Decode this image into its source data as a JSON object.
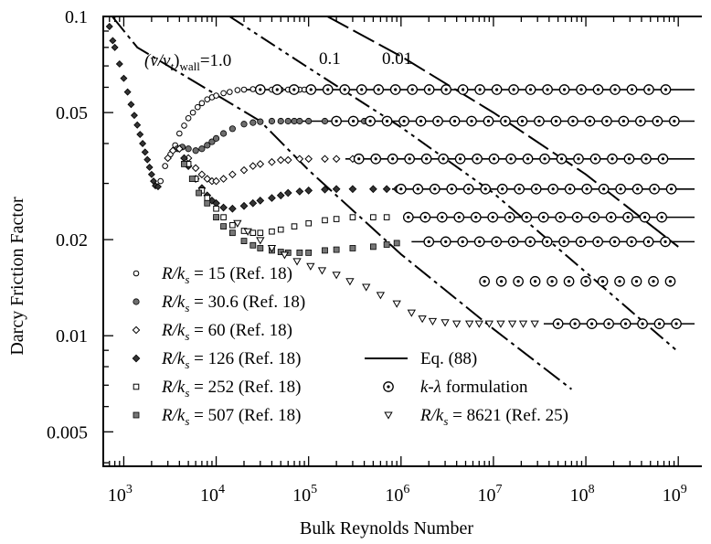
{
  "chart_data": {
    "type": "scatter",
    "title": "",
    "xlabel": "Bulk Reynolds Number",
    "ylabel": "Darcy Friction Factor",
    "x_scale": "log",
    "y_scale": "log",
    "xlim": [
      600,
      1500000000
    ],
    "ylim": [
      0.0039,
      0.1
    ],
    "x_ticks": [
      {
        "value": 1000,
        "base": "10",
        "exp": "3"
      },
      {
        "value": 10000,
        "base": "10",
        "exp": "4"
      },
      {
        "value": 100000,
        "base": "10",
        "exp": "5"
      },
      {
        "value": 1000000,
        "base": "10",
        "exp": "6"
      },
      {
        "value": 10000000,
        "base": "10",
        "exp": "7"
      },
      {
        "value": 100000000,
        "base": "10",
        "exp": "8"
      },
      {
        "value": 1000000000,
        "base": "10",
        "exp": "9"
      }
    ],
    "y_ticks": [
      {
        "value": 0.005,
        "label": "0.005"
      },
      {
        "value": 0.01,
        "label": "0.01"
      },
      {
        "value": 0.02,
        "label": "0.02"
      },
      {
        "value": 0.05,
        "label": "0.05"
      },
      {
        "value": 0.1,
        "label": "0.1"
      }
    ],
    "grid": false,
    "legend_position": "lower-left",
    "legend": [
      {
        "marker": "circle-open",
        "label": " = 15 (Ref. 18)"
      },
      {
        "marker": "circle-gray",
        "label": " = 30.6 (Ref. 18)"
      },
      {
        "marker": "diamond-open",
        "label": " = 60 (Ref. 18)"
      },
      {
        "marker": "diamond-dark",
        "label": " = 126 (Ref. 18)"
      },
      {
        "marker": "square-open",
        "label": " = 252 (Ref. 18)"
      },
      {
        "marker": "square-gray",
        "label": " = 507 (Ref. 18)"
      },
      {
        "marker": "line",
        "label": "Eq. (88)"
      },
      {
        "marker": "circle-dot",
        "label": " formulation"
      },
      {
        "marker": "triangle-down-open",
        "label": " = 8621 (Ref. 25)"
      }
    ],
    "legend_var": "R/k",
    "legend_var_sub": "s",
    "legend_k_lambda": "k-λ",
    "viscosity_label": {
      "text": "(ν/ν",
      "sub_t": "t",
      "close": ")",
      "sub_wall": "wall",
      "eq": "=1.0"
    },
    "iso_line_labels": [
      {
        "text": "0.1",
        "value": 0.1
      },
      {
        "text": "0.01",
        "value": 0.01
      }
    ],
    "laminar_series": [
      [
        700,
        0.093
      ],
      [
        760,
        0.084
      ],
      [
        800,
        0.08
      ],
      [
        900,
        0.071
      ],
      [
        1000,
        0.064
      ],
      [
        1100,
        0.058
      ],
      [
        1200,
        0.053
      ],
      [
        1300,
        0.049
      ],
      [
        1400,
        0.0457
      ],
      [
        1500,
        0.0427
      ],
      [
        1600,
        0.04
      ],
      [
        1700,
        0.0376
      ],
      [
        1800,
        0.0356
      ],
      [
        1900,
        0.0337
      ],
      [
        2000,
        0.032
      ],
      [
        2100,
        0.0305
      ],
      [
        2200,
        0.0295
      ],
      [
        2350,
        0.0293
      ]
    ],
    "series": [
      {
        "name": "R/ks = 15 (Ref. 18)",
        "marker": "circle-open",
        "values": [
          [
            2500,
            0.0305
          ],
          [
            2800,
            0.034
          ],
          [
            3200,
            0.037
          ],
          [
            3600,
            0.0395
          ],
          [
            4000,
            0.043
          ],
          [
            4500,
            0.0455
          ],
          [
            5000,
            0.048
          ],
          [
            5600,
            0.05
          ],
          [
            6300,
            0.052
          ],
          [
            7000,
            0.0535
          ],
          [
            8000,
            0.055
          ],
          [
            9000,
            0.0558
          ],
          [
            10000,
            0.0565
          ],
          [
            12000,
            0.0575
          ],
          [
            14000,
            0.058
          ],
          [
            17000,
            0.0588
          ],
          [
            20000,
            0.059
          ],
          [
            25000,
            0.0592
          ],
          [
            30000,
            0.059
          ],
          [
            40000,
            0.059
          ],
          [
            50000,
            0.059
          ],
          [
            60000,
            0.059
          ],
          [
            70000,
            0.059
          ],
          [
            80000,
            0.059
          ],
          [
            90000,
            0.059
          ]
        ]
      },
      {
        "name": "R/ks = 30.6 (Ref. 18)",
        "marker": "circle-gray",
        "values": [
          [
            3800,
            0.0385
          ],
          [
            4300,
            0.039
          ],
          [
            5000,
            0.0385
          ],
          [
            6000,
            0.038
          ],
          [
            7000,
            0.0385
          ],
          [
            8000,
            0.0395
          ],
          [
            9000,
            0.0405
          ],
          [
            10000,
            0.0415
          ],
          [
            12000,
            0.043
          ],
          [
            15000,
            0.0445
          ],
          [
            20000,
            0.046
          ],
          [
            25000,
            0.0465
          ],
          [
            30000,
            0.0468
          ],
          [
            40000,
            0.047
          ],
          [
            50000,
            0.047
          ],
          [
            60000,
            0.047
          ],
          [
            70000,
            0.047
          ],
          [
            80000,
            0.047
          ],
          [
            100000,
            0.047
          ],
          [
            150000,
            0.047
          ],
          [
            200000,
            0.047
          ],
          [
            300000,
            0.047
          ],
          [
            400000,
            0.047
          ]
        ]
      },
      {
        "name": "R/ks = 60 (Ref. 18)",
        "marker": "diamond-open",
        "values": [
          [
            3000,
            0.036
          ],
          [
            3400,
            0.038
          ],
          [
            4000,
            0.0385
          ],
          [
            5000,
            0.036
          ],
          [
            6000,
            0.0335
          ],
          [
            7000,
            0.032
          ],
          [
            8000,
            0.031
          ],
          [
            9000,
            0.0305
          ],
          [
            10000,
            0.0305
          ],
          [
            12000,
            0.031
          ],
          [
            15000,
            0.032
          ],
          [
            20000,
            0.033
          ],
          [
            25000,
            0.034
          ],
          [
            30000,
            0.0345
          ],
          [
            40000,
            0.035
          ],
          [
            50000,
            0.0355
          ],
          [
            60000,
            0.0355
          ],
          [
            80000,
            0.0358
          ],
          [
            100000,
            0.0358
          ],
          [
            150000,
            0.0358
          ],
          [
            200000,
            0.0358
          ],
          [
            300000,
            0.0358
          ]
        ]
      },
      {
        "name": "R/ks = 126 (Ref. 18)",
        "marker": "diamond-dark",
        "values": [
          [
            4500,
            0.036
          ],
          [
            5000,
            0.034
          ],
          [
            6000,
            0.031
          ],
          [
            7000,
            0.029
          ],
          [
            8000,
            0.0275
          ],
          [
            9000,
            0.0265
          ],
          [
            10000,
            0.026
          ],
          [
            12000,
            0.0252
          ],
          [
            15000,
            0.025
          ],
          [
            20000,
            0.0255
          ],
          [
            25000,
            0.026
          ],
          [
            30000,
            0.0265
          ],
          [
            40000,
            0.027
          ],
          [
            50000,
            0.0275
          ],
          [
            60000,
            0.028
          ],
          [
            80000,
            0.0283
          ],
          [
            100000,
            0.0285
          ],
          [
            150000,
            0.0287
          ],
          [
            200000,
            0.0288
          ],
          [
            300000,
            0.0288
          ],
          [
            500000,
            0.0288
          ],
          [
            700000,
            0.0288
          ],
          [
            900000,
            0.0288
          ]
        ]
      },
      {
        "name": "R/ks = 252 (Ref. 18)",
        "marker": "square-open",
        "values": [
          [
            5000,
            0.0345
          ],
          [
            6000,
            0.031
          ],
          [
            7000,
            0.0285
          ],
          [
            8000,
            0.027
          ],
          [
            10000,
            0.025
          ],
          [
            12000,
            0.0235
          ],
          [
            15000,
            0.0222
          ],
          [
            20000,
            0.0213
          ],
          [
            25000,
            0.021
          ],
          [
            30000,
            0.021
          ],
          [
            40000,
            0.0212
          ],
          [
            50000,
            0.0215
          ],
          [
            70000,
            0.022
          ],
          [
            100000,
            0.0225
          ],
          [
            150000,
            0.023
          ],
          [
            200000,
            0.0232
          ],
          [
            300000,
            0.0235
          ],
          [
            500000,
            0.0235
          ],
          [
            700000,
            0.0235
          ]
        ]
      },
      {
        "name": "R/ks = 507 (Ref. 18)",
        "marker": "square-gray",
        "values": [
          [
            4500,
            0.0345
          ],
          [
            5500,
            0.031
          ],
          [
            6500,
            0.028
          ],
          [
            8000,
            0.026
          ],
          [
            10000,
            0.0235
          ],
          [
            12000,
            0.022
          ],
          [
            15000,
            0.021
          ],
          [
            20000,
            0.0198
          ],
          [
            25000,
            0.0192
          ],
          [
            30000,
            0.0188
          ],
          [
            40000,
            0.0185
          ],
          [
            50000,
            0.0183
          ],
          [
            60000,
            0.0182
          ],
          [
            80000,
            0.0182
          ],
          [
            100000,
            0.0182
          ],
          [
            150000,
            0.0185
          ],
          [
            200000,
            0.0186
          ],
          [
            300000,
            0.0188
          ],
          [
            500000,
            0.019
          ],
          [
            700000,
            0.0193
          ],
          [
            900000,
            0.0195
          ]
        ]
      },
      {
        "name": "R/ks = 8621 (Ref. 25)",
        "marker": "triangle-down-open",
        "values": [
          [
            17000,
            0.0225
          ],
          [
            22000,
            0.0212
          ],
          [
            30000,
            0.0199
          ],
          [
            40000,
            0.0188
          ],
          [
            55000,
            0.0179
          ],
          [
            75000,
            0.0171
          ],
          [
            105000,
            0.0165
          ],
          [
            140000,
            0.016
          ],
          [
            200000,
            0.0155
          ],
          [
            280000,
            0.0148
          ],
          [
            420000,
            0.0142
          ],
          [
            600000,
            0.0134
          ],
          [
            900000,
            0.0126
          ],
          [
            1300000,
            0.0118
          ],
          [
            1700000,
            0.0113
          ],
          [
            2200000,
            0.0111
          ],
          [
            3000000,
            0.011
          ],
          [
            4000000,
            0.0109
          ],
          [
            5500000,
            0.0109
          ],
          [
            7000000,
            0.0109
          ],
          [
            9000000,
            0.0109
          ],
          [
            12000000,
            0.0109
          ],
          [
            16000000,
            0.0109
          ],
          [
            21000000,
            0.0109
          ],
          [
            28000000,
            0.0109
          ]
        ]
      }
    ],
    "eq88_lines": [
      {
        "fD": 0.059,
        "x_start": 20000
      },
      {
        "fD": 0.047,
        "x_start": 80000
      },
      {
        "fD": 0.0358,
        "x_start": 250000
      },
      {
        "fD": 0.0288,
        "x_start": 800000
      },
      {
        "fD": 0.0235,
        "x_start": 1200000
      },
      {
        "fD": 0.0197,
        "x_start": 1300000
      },
      {
        "fD": 0.0109,
        "x_start": 35000000
      }
    ],
    "k_lambda_series": [
      {
        "fD": 0.059,
        "x_from": 30000,
        "x_to": 1000000000
      },
      {
        "fD": 0.047,
        "x_from": 200000,
        "x_to": 1000000000
      },
      {
        "fD": 0.0358,
        "x_from": 350000,
        "x_to": 1000000000
      },
      {
        "fD": 0.0288,
        "x_from": 1000000,
        "x_to": 1000000000
      },
      {
        "fD": 0.0235,
        "x_from": 1200000,
        "x_to": 1000000000
      },
      {
        "fD": 0.0197,
        "x_from": 2000000,
        "x_to": 1000000000
      },
      {
        "fD": 0.0148,
        "x_from": 8000000,
        "x_to": 1000000000
      },
      {
        "fD": 0.0109,
        "x_from": 50000000,
        "x_to": 1000000000
      }
    ],
    "iso_viscosity_lines": [
      {
        "value": 1.0,
        "points": [
          [
            750,
            0.1
          ],
          [
            1400,
            0.08
          ],
          [
            30000,
            0.047
          ],
          [
            100000,
            0.033
          ],
          [
            1000000,
            0.018
          ],
          [
            10000000,
            0.0105
          ],
          [
            70000000,
            0.0068
          ]
        ]
      },
      {
        "value": 0.1,
        "points": [
          [
            14000,
            0.1
          ],
          [
            100000,
            0.069
          ],
          [
            1000000,
            0.045
          ],
          [
            10000000,
            0.028
          ],
          [
            100000000,
            0.0158
          ],
          [
            1000000000,
            0.0089
          ]
        ]
      },
      {
        "value": 0.01,
        "points": [
          [
            160000,
            0.1
          ],
          [
            1000000,
            0.075
          ],
          [
            10000000,
            0.05
          ],
          [
            100000000,
            0.032
          ],
          [
            1000000000,
            0.019
          ]
        ]
      }
    ]
  }
}
